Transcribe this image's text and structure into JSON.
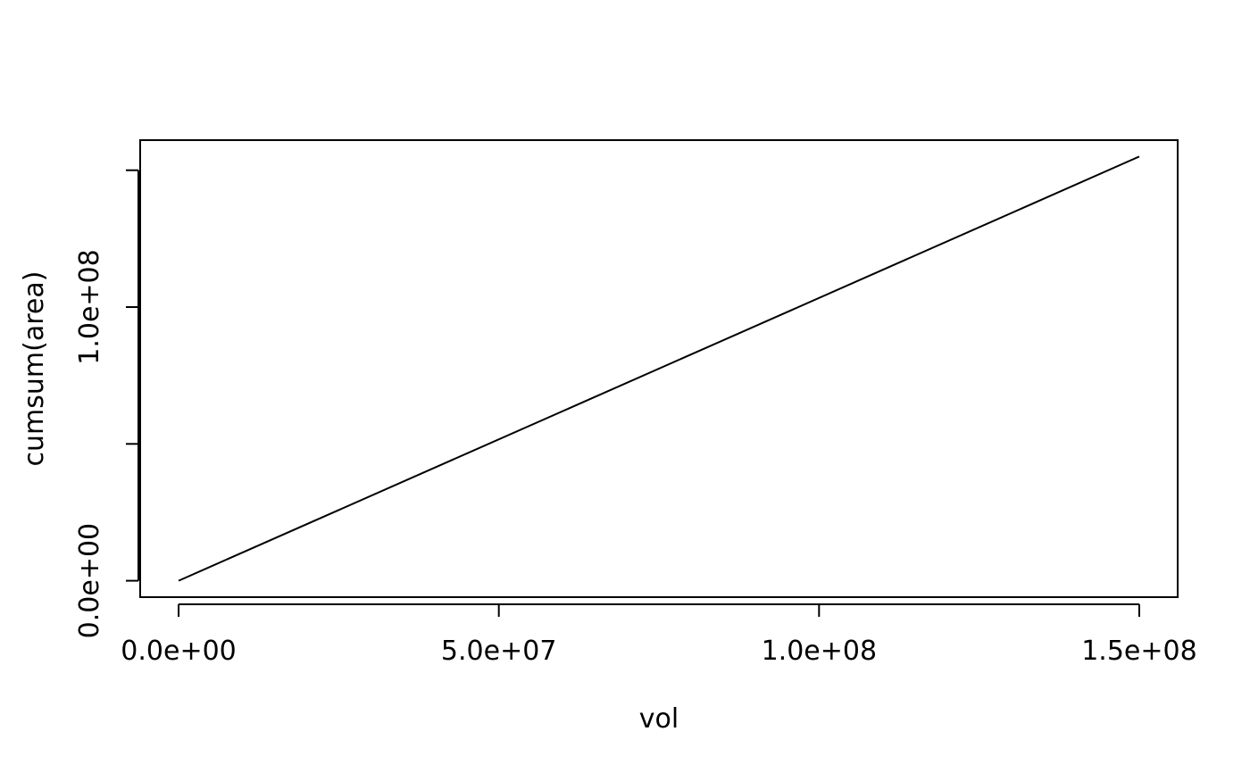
{
  "chart_data": {
    "type": "line",
    "title": "",
    "xlabel": "vol",
    "ylabel": "cumsum(area)",
    "xlim": [
      -6000000,
      156000000
    ],
    "ylim": [
      -6000000,
      161000000
    ],
    "x_ticks": [
      {
        "value": 0,
        "label": "0.0e+00"
      },
      {
        "value": 50000000,
        "label": "5.0e+07"
      },
      {
        "value": 100000000,
        "label": "1.0e+08"
      },
      {
        "value": 150000000,
        "label": "1.5e+08"
      }
    ],
    "y_ticks": [
      {
        "value": 0,
        "label": "0.0e+00"
      },
      {
        "value": 50000000,
        "label": ""
      },
      {
        "value": 100000000,
        "label": "1.0e+08"
      },
      {
        "value": 150000000,
        "label": ""
      }
    ],
    "series": [
      {
        "x": [
          0,
          150000000
        ],
        "y": [
          0,
          155000000
        ],
        "color": "#000000"
      }
    ],
    "grid": false,
    "legend": "none"
  }
}
